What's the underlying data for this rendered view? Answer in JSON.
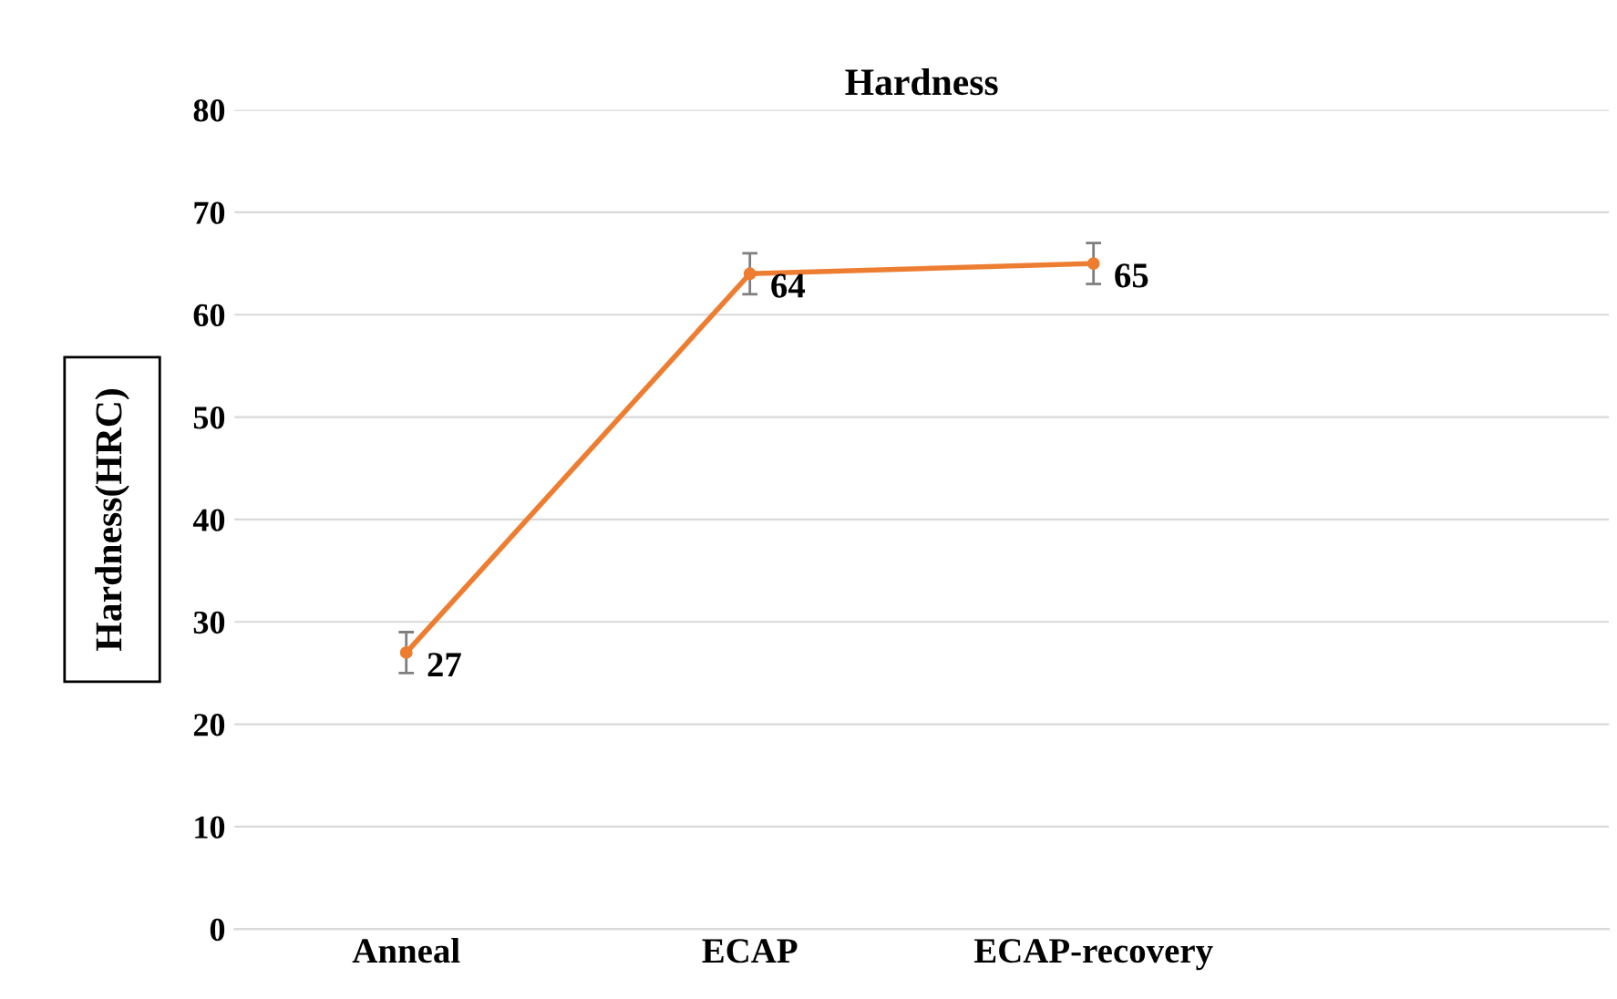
{
  "chart_data": {
    "type": "line",
    "title": "Hardness",
    "ylabel": "Hardness(HRC)",
    "categories": [
      "Anneal",
      "ECAP",
      "ECAP-recovery"
    ],
    "series": [
      {
        "color": "#ed7d31",
        "values": [
          27,
          64,
          65
        ],
        "errors": [
          2,
          2,
          2
        ]
      }
    ],
    "ylim": [
      0,
      80
    ],
    "yticks": [
      0,
      10,
      20,
      30,
      40,
      50,
      60,
      70,
      80
    ],
    "grid": "y",
    "marker": "circle",
    "line_style": "solid",
    "data_labels": true,
    "legend": false
  }
}
